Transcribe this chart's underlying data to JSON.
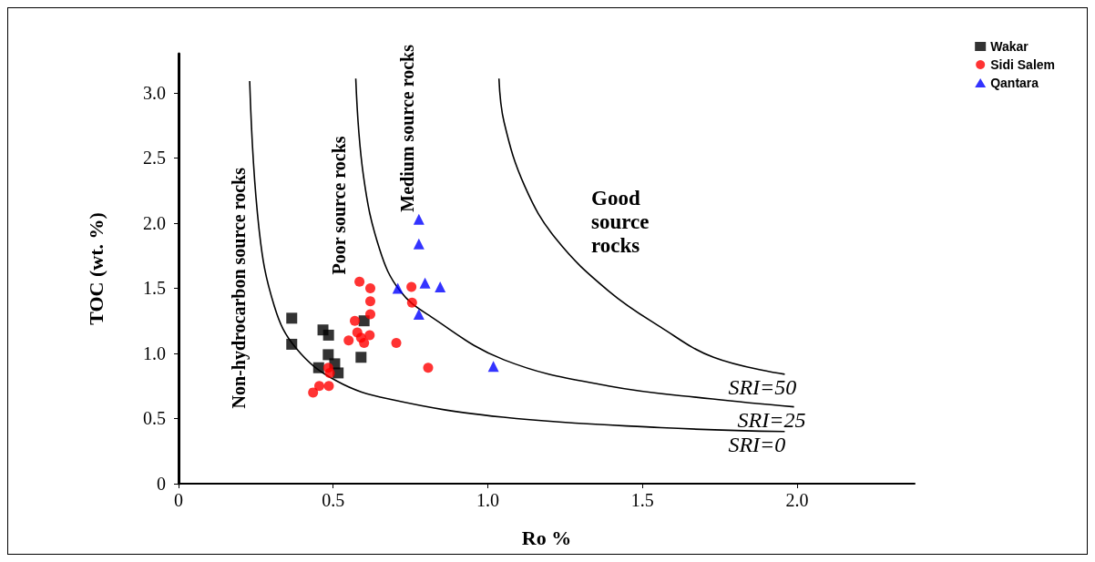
{
  "chart_data": {
    "type": "scatter",
    "xlabel": "Ro %",
    "ylabel": "TOC (wt. %)",
    "xlim": [
      0,
      2.38
    ],
    "xticks": [
      0,
      0.5,
      {
        "value": 1,
        "label": "1.0"
      },
      1.5,
      {
        "value": 2,
        "label": "2.0"
      }
    ],
    "ylim": [
      0,
      3.3
    ],
    "yticks": [
      0,
      0.5,
      {
        "value": 1,
        "label": "1.0"
      },
      1.5,
      {
        "value": 2,
        "label": "2.0"
      },
      2.5,
      {
        "value": 3,
        "label": "3.0"
      }
    ],
    "grid": false,
    "legend": "top right",
    "annotations": [
      "Non-hydrocarbon source rocks",
      "Poor source rocks",
      "Medium source rocks",
      "Good source rocks"
    ],
    "series": [
      {
        "name": "Wakar",
        "color": "#000000",
        "marker": "square",
        "x": [
          0.366,
          0.366,
          0.467,
          0.485,
          0.484,
          0.453,
          0.505,
          0.516,
          0.6,
          0.59
        ],
        "values": [
          1.27,
          1.07,
          1.18,
          1.14,
          0.99,
          0.89,
          0.92,
          0.85,
          1.25,
          0.97
        ]
      },
      {
        "name": "Sidi Salem",
        "color": "#ff0000",
        "marker": "circle",
        "x": [
          0.585,
          0.62,
          0.62,
          0.62,
          0.57,
          0.618,
          0.578,
          0.55,
          0.6,
          0.59,
          0.704,
          0.753,
          0.755,
          0.807,
          0.484,
          0.489,
          0.486,
          0.455,
          0.435
        ],
        "values": [
          1.55,
          1.5,
          1.4,
          1.3,
          1.25,
          1.14,
          1.16,
          1.1,
          1.08,
          1.12,
          1.08,
          1.51,
          1.39,
          0.89,
          0.89,
          0.85,
          0.75,
          0.75,
          0.7
        ]
      },
      {
        "name": "Qantara",
        "color": "#0000ff",
        "marker": "triangle",
        "x": [
          0.777,
          0.777,
          0.709,
          0.797,
          0.846,
          0.777,
          1.018
        ],
        "values": [
          2.03,
          1.84,
          1.5,
          1.54,
          1.51,
          1.3,
          0.9
        ]
      },
      {
        "name": "SRI=0",
        "type": "line",
        "color": "#000000",
        "marker": "none",
        "x": [
          0.23,
          0.26,
          0.31,
          0.38,
          0.51,
          0.68,
          1.05,
          1.56,
          1.96
        ],
        "values": [
          3.09,
          1.96,
          1.36,
          1.04,
          0.79,
          0.65,
          0.51,
          0.43,
          0.4
        ]
      },
      {
        "name": "SRI=25",
        "type": "line",
        "color": "#000000",
        "marker": "none",
        "x": [
          0.573,
          0.598,
          0.65,
          0.716,
          0.817,
          1.053,
          1.39,
          1.727,
          1.99
        ],
        "values": [
          3.11,
          2.36,
          1.8,
          1.48,
          1.28,
          0.95,
          0.75,
          0.65,
          0.59
        ]
      },
      {
        "name": "SRI=50",
        "type": "line",
        "color": "#000000",
        "marker": "none",
        "x": [
          1.036,
          1.053,
          1.12,
          1.22,
          1.39,
          1.56,
          1.73,
          1.96
        ],
        "values": [
          3.11,
          2.77,
          2.28,
          1.88,
          1.48,
          1.2,
          0.97,
          0.84
        ]
      }
    ]
  }
}
